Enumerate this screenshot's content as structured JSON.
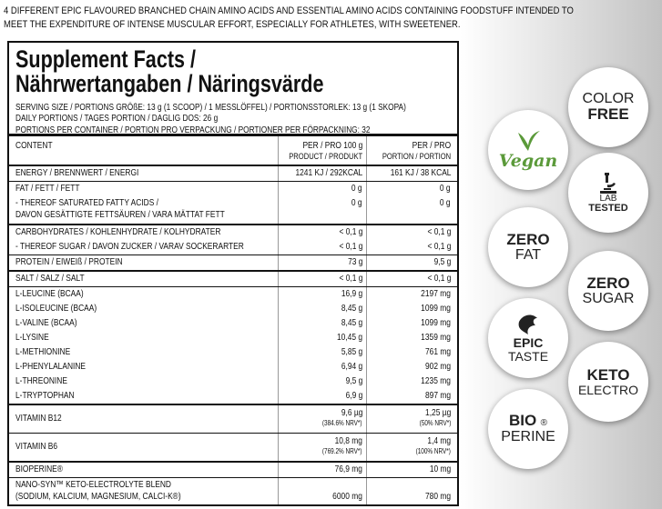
{
  "header": {
    "lines": [
      "4 DIFFERENT EPIC FLAVOURED BRANCHED CHAIN AMINO ACIDS AND ESSENTIAL AMINO ACIDS CONTAINING FOODSTUFF INTENDED TO",
      "MEET THE EXPENDITURE OF INTENSE MUSCULAR EFFORT, ESPECIALLY FOR ATHLETES, WITH SWEETENER."
    ]
  },
  "facts": {
    "title": [
      "Supplement Facts /",
      "Nährwertangaben / Näringsvärde"
    ],
    "serving": [
      "SERVING SIZE / PORTIONS GRÖßE: 13 g (1 SCOOP) / 1 MESSLÖFFEL) / PORTIONSSTORLEK: 13 g (1 SKOPA)",
      "DAILY PORTIONS / TAGES PORTION / DAGLIG DOS: 26 g",
      "PORTIONS PER CONTAINER / PORTION PRO VERPACKUNG / PORTIONER PER FÖRPACKNING: 32"
    ],
    "columns": {
      "content": "CONTENT",
      "per100": [
        "PER / PRO 100 g",
        "PRODUCT / PRODUKT"
      ],
      "portion": [
        "PER / PRO",
        "PORTION / PORTION"
      ]
    },
    "groups": [
      [
        {
          "label": [
            "ENERGY / BRENNWERT / ENERGI"
          ],
          "per100": "1241 KJ / 292KCAL",
          "portion": "161 KJ / 38 KCAL"
        }
      ],
      [
        {
          "label": [
            "FAT / FETT / FETT"
          ],
          "per100": "0 g",
          "portion": "0 g"
        },
        {
          "label": [
            "- THEREOF SATURATED FATTY ACIDS /",
            "DAVON GESÄTTIGTE FETTSÄUREN / VARA MÄTTAT FETT"
          ],
          "per100": "0 g",
          "portion": "0 g"
        }
      ],
      [
        {
          "label": [
            "CARBOHYDRATES / KOHLENHYDRATE / KOLHYDRATER"
          ],
          "per100": "< 0,1 g",
          "portion": "< 0,1 g"
        },
        {
          "label": [
            "- THEREOF SUGAR / DAVON ZUCKER / VARAV SOCKERARTER"
          ],
          "per100": "< 0,1 g",
          "portion": "< 0,1 g"
        }
      ],
      [
        {
          "label": [
            "PROTEIN / EIWEIß / PROTEIN"
          ],
          "per100": "73 g",
          "portion": "9,5 g"
        }
      ],
      [
        {
          "label": [
            "SALT / SALZ / SALT"
          ],
          "per100": "< 0,1 g",
          "portion": "< 0,1 g"
        }
      ],
      [
        {
          "label": [
            "L-LEUCINE (BCAA)"
          ],
          "per100": "16,9 g",
          "portion": "2197 mg"
        },
        {
          "label": [
            "L-ISOLEUCINE (BCAA)"
          ],
          "per100": "8,45 g",
          "portion": "1099 mg"
        },
        {
          "label": [
            "L-VALINE (BCAA)"
          ],
          "per100": "8,45 g",
          "portion": "1099 mg"
        },
        {
          "label": [
            "L-LYSINE"
          ],
          "per100": "10,45 g",
          "portion": "1359 mg"
        },
        {
          "label": [
            "L-METHIONINE"
          ],
          "per100": "5,85 g",
          "portion": "761 mg"
        },
        {
          "label": [
            "L-PHENYLALANINE"
          ],
          "per100": "6,94 g",
          "portion": "902 mg"
        },
        {
          "label": [
            "L-THREONINE"
          ],
          "per100": "9,5 g",
          "portion": "1235 mg"
        },
        {
          "label": [
            "L-TRYPTOPHAN"
          ],
          "per100": "6,9 g",
          "portion": "897 mg"
        }
      ],
      [
        {
          "label": [
            "VITAMIN B12"
          ],
          "per100": "9,6 µg",
          "per100_note": "(384.6% NRV*)",
          "portion": "1,25 µg",
          "portion_note": "(50% NRV*)"
        }
      ],
      [
        {
          "label": [
            "VITAMIN B6"
          ],
          "per100": "10,8 mg",
          "per100_note": "(769.2% NRV*)",
          "portion": "1,4 mg",
          "portion_note": "(100% NRV*)"
        }
      ],
      [
        {
          "label": [
            "BIOPERINE®"
          ],
          "per100": "76,9 mg",
          "portion": "10 mg"
        }
      ],
      [
        {
          "label": [
            "NANO-SYN™ KETO-ELECTROLYTE BLEND",
            "(SODIUM, KALCIUM, MAGNESIUM, CALCI-K®)"
          ],
          "per100": "6000 mg",
          "portion": "780 mg"
        }
      ]
    ]
  },
  "badges": {
    "color_free": [
      "COLOR",
      "FREE"
    ],
    "vegan": "Vegan",
    "lab_tested": [
      "LAB",
      "TESTED"
    ],
    "zero_fat": [
      "ZERO",
      "FAT"
    ],
    "zero_sugar": [
      "ZERO",
      "SUGAR"
    ],
    "epic_taste": [
      "EPIC",
      "TASTE"
    ],
    "keto_electro": [
      "KETO",
      "ELECTRO"
    ],
    "bio_perine": [
      "BIO",
      "PERINE",
      "®"
    ]
  }
}
